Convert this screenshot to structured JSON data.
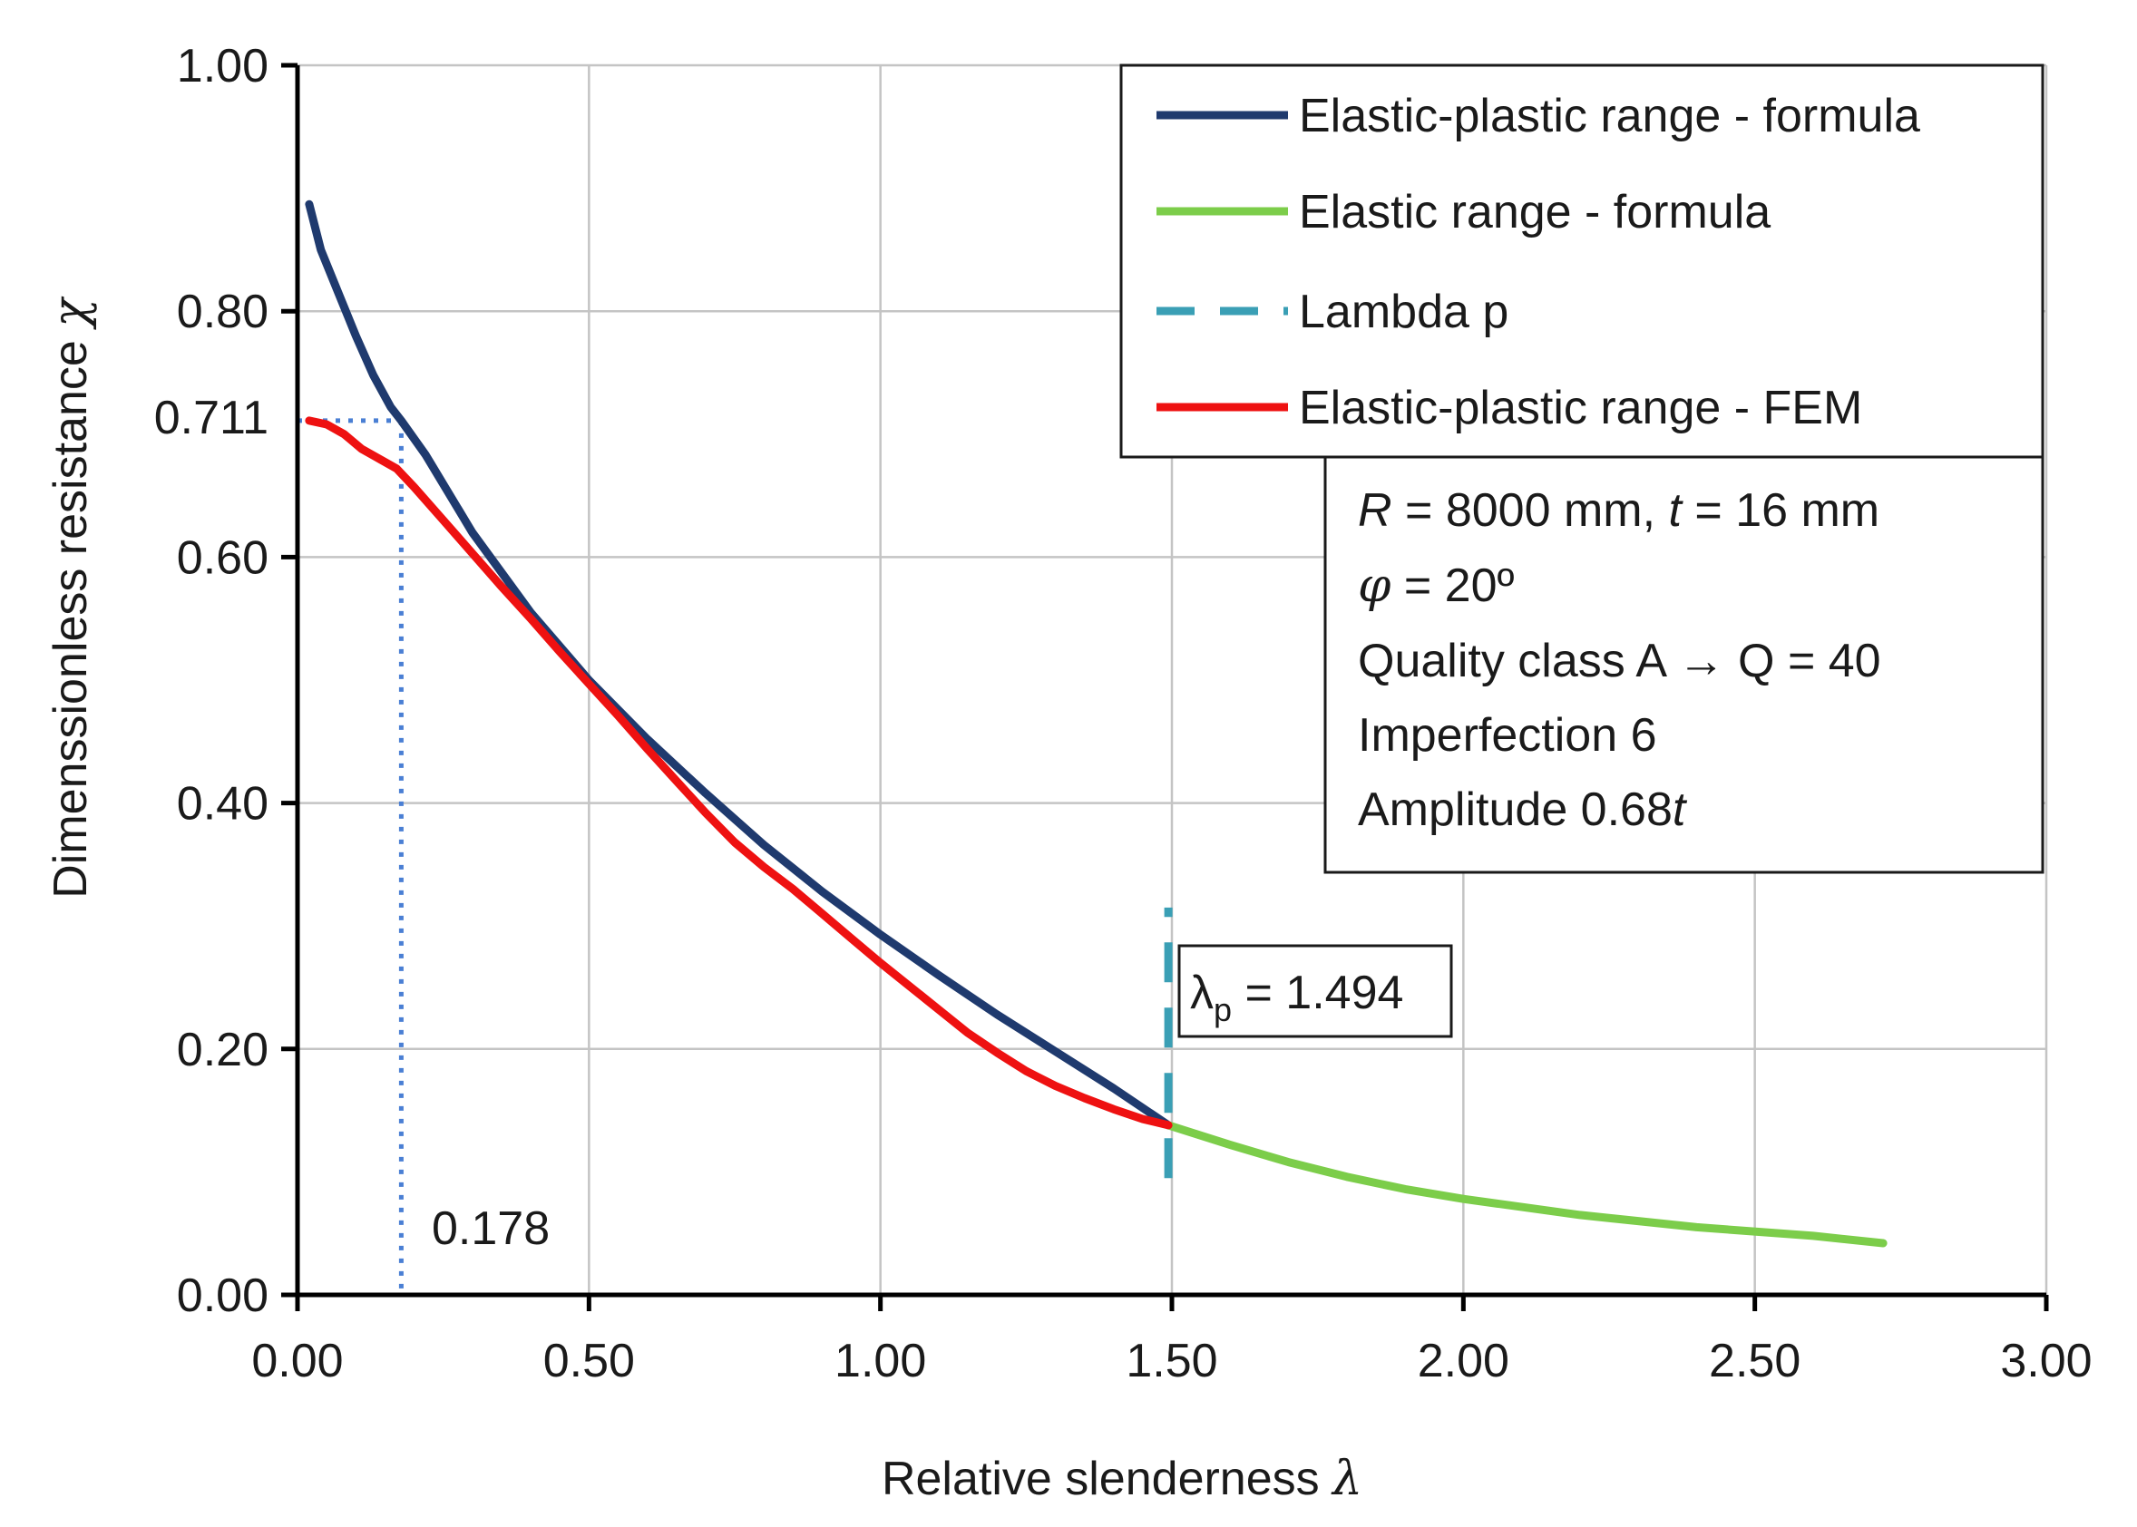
{
  "chart_data": {
    "type": "line",
    "xlabel": "Relative slenderness",
    "xlabel_symbol": "λ",
    "ylabel": "Dimenssionless resistance",
    "ylabel_symbol": "χ",
    "xlim": [
      0,
      3
    ],
    "ylim": [
      0,
      1
    ],
    "x_ticks": [
      "0.00",
      "0.50",
      "1.00",
      "1.50",
      "2.00",
      "2.50",
      "3.00"
    ],
    "x_tick_values": [
      0,
      0.5,
      1,
      1.5,
      2,
      2.5,
      3
    ],
    "y_ticks": [
      "0.00",
      "0.20",
      "0.40",
      "0.60",
      "0.80",
      "1.00"
    ],
    "y_tick_values": [
      0,
      0.2,
      0.4,
      0.6,
      0.8,
      1.0
    ],
    "grid": true,
    "legend_position": "top-right",
    "series": [
      {
        "name": "Elastic-plastic range - formula",
        "color": "#1f3a6e",
        "style": "solid",
        "x": [
          0.02,
          0.04,
          0.07,
          0.1,
          0.13,
          0.16,
          0.178,
          0.22,
          0.3,
          0.4,
          0.5,
          0.6,
          0.7,
          0.8,
          0.9,
          1.0,
          1.1,
          1.2,
          1.3,
          1.4,
          1.494
        ],
        "y": [
          0.887,
          0.85,
          0.815,
          0.78,
          0.748,
          0.722,
          0.711,
          0.683,
          0.62,
          0.555,
          0.5,
          0.452,
          0.408,
          0.366,
          0.328,
          0.293,
          0.26,
          0.228,
          0.198,
          0.168,
          0.138
        ]
      },
      {
        "name": "Elastic range - formula",
        "color": "#7ccd4a",
        "style": "solid",
        "x": [
          1.494,
          1.6,
          1.7,
          1.8,
          1.9,
          2.0,
          2.2,
          2.4,
          2.6,
          2.72
        ],
        "y": [
          0.138,
          0.122,
          0.108,
          0.096,
          0.086,
          0.078,
          0.065,
          0.055,
          0.048,
          0.042
        ]
      },
      {
        "name": "Lambda p",
        "color": "#3a9fb5",
        "style": "dashed",
        "x": [
          1.494,
          1.494
        ],
        "y": [
          0.095,
          0.315
        ]
      },
      {
        "name": "Elastic-plastic range - FEM",
        "color": "#ee1111",
        "style": "solid",
        "x": [
          0.02,
          0.05,
          0.08,
          0.11,
          0.14,
          0.17,
          0.2,
          0.25,
          0.3,
          0.35,
          0.4,
          0.45,
          0.5,
          0.55,
          0.6,
          0.65,
          0.7,
          0.75,
          0.8,
          0.85,
          0.9,
          0.95,
          1.0,
          1.05,
          1.1,
          1.15,
          1.2,
          1.25,
          1.3,
          1.35,
          1.4,
          1.45,
          1.494
        ],
        "y": [
          0.711,
          0.708,
          0.7,
          0.688,
          0.68,
          0.672,
          0.657,
          0.63,
          0.603,
          0.576,
          0.55,
          0.523,
          0.497,
          0.471,
          0.444,
          0.418,
          0.392,
          0.368,
          0.348,
          0.33,
          0.31,
          0.29,
          0.27,
          0.251,
          0.232,
          0.213,
          0.197,
          0.182,
          0.17,
          0.16,
          0.151,
          0.143,
          0.138
        ]
      }
    ],
    "reference_lines": {
      "lambda_0_x": 0.178,
      "lambda_0_y": 0.711,
      "lambda_0_label": "0.178",
      "chi_label": "0.711",
      "color": "#4a7fd4"
    },
    "annotation_lambda_p": {
      "symbol": "λ",
      "subscript": "p",
      "text": " = 1.494"
    },
    "info_box": {
      "line1": {
        "R_symbol": "R",
        "R_text": " = 8000 mm, ",
        "t_symbol": "t",
        "t_text": " = 16 mm"
      },
      "line2": {
        "phi_symbol": "φ",
        "phi_text": " = 20º"
      },
      "line3": "Quality class A  →  Q = 40",
      "line4": "Imperfection 6",
      "line5": {
        "text": "Amplitude 0.68",
        "t_symbol": "t"
      }
    }
  }
}
